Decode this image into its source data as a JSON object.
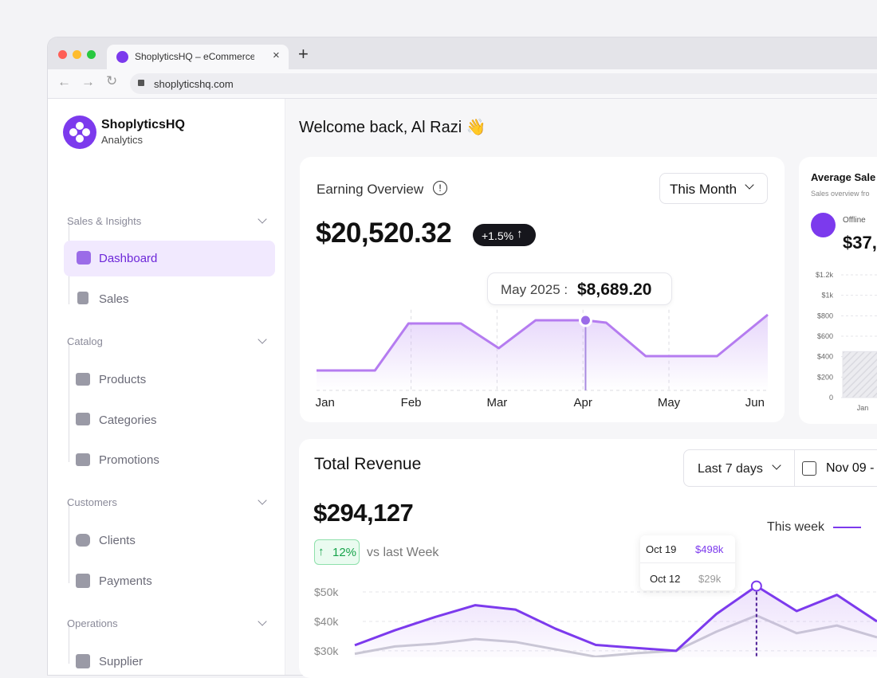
{
  "browser": {
    "tab_title": "ShoplyticsHQ – eCommerce Ana",
    "url": "shoplyticshq.com"
  },
  "sidebar": {
    "brand": "ShoplyticsHQ",
    "brand_subtitle": "Analytics",
    "sections": [
      {
        "title": "Sales & Insights",
        "items": [
          "Dashboard",
          "Sales"
        ]
      },
      {
        "title": "Catalog",
        "items": [
          "Products",
          "Categories",
          "Promotions"
        ]
      },
      {
        "title": "Customers",
        "items": [
          "Clients",
          "Payments"
        ]
      },
      {
        "title": "Operations",
        "items": [
          "Supplier"
        ]
      }
    ]
  },
  "header": {
    "greeting": "Welcome back, Al Razi 👋"
  },
  "earning_overview": {
    "title": "Earning Overview",
    "period": "This Month",
    "amount": "$20,520.32",
    "change": "+1.5%",
    "tooltip": {
      "label": "May 2025 :",
      "value": "$8,689.20"
    },
    "chart_data": {
      "type": "line",
      "color": "#b57cf0",
      "x": [
        -0.1,
        0.58,
        0.97,
        1.58,
        2.02,
        2.45,
        3.03,
        3.27,
        3.73,
        4.56,
        5.15
      ],
      "values": [
        2470,
        2470,
        8290,
        8290,
        5230,
        8690,
        8689.2,
        8390,
        4245,
        4245,
        9380
      ],
      "xlim": [
        -0.1,
        5.15
      ],
      "ylim": [
        0,
        10000
      ],
      "xticks": [
        {
          "value": 0,
          "label": "Jan"
        },
        {
          "value": 1,
          "label": "Feb"
        },
        {
          "value": 2,
          "label": "Mar"
        },
        {
          "value": 3,
          "label": "Apr"
        },
        {
          "value": 4,
          "label": "May"
        },
        {
          "value": 5,
          "label": "Jun"
        }
      ],
      "grid": true,
      "highlight_index": 6
    }
  },
  "average_sales": {
    "title": "Average Sale",
    "subtitle": "Sales overview fro",
    "channel": "Offline",
    "amount": "$37,",
    "chart_data": {
      "type": "bar",
      "categories": [
        "Jan"
      ],
      "values": [
        450
      ],
      "color": "#e4e4ea",
      "ylim": [
        0,
        1200
      ],
      "yticks": [
        0,
        {
          "value": 200,
          "label": "$200"
        },
        {
          "value": 400,
          "label": "$400"
        },
        {
          "value": 600,
          "label": "$600"
        },
        {
          "value": 800,
          "label": "$800"
        },
        {
          "value": 1000,
          "label": "$1k"
        },
        {
          "value": 1200,
          "label": "$1.2k"
        }
      ],
      "grid": true
    }
  },
  "total_revenue": {
    "title": "Total Revenue",
    "range": "Last 7 days",
    "date": "Nov 09 -",
    "amount": "$294,127",
    "change": "12%",
    "comparison": "vs last Week",
    "tooltip": {
      "rows": [
        {
          "label": "Oct 19",
          "value": "$498k"
        },
        {
          "label": "Oct 12",
          "value": "$29k"
        }
      ]
    },
    "chart_data": {
      "type": "line",
      "series": [
        {
          "name": "This week",
          "color": "#7c3aed",
          "values": [
            31900,
            37000,
            41500,
            45500,
            44000,
            37500,
            32000,
            31000,
            30000,
            42500,
            52000,
            43500,
            49000,
            40000
          ]
        },
        {
          "color": "#c9c9d2",
          "values": [
            29000,
            31500,
            32400,
            34000,
            33000,
            30500,
            28000,
            29200,
            30000,
            36500,
            42000,
            36000,
            38600,
            34600
          ]
        }
      ],
      "ylim": [
        27000,
        53000
      ],
      "yticks": [
        {
          "value": 30000,
          "label": "$30k"
        },
        {
          "value": 40000,
          "label": "$40k"
        },
        {
          "value": 50000,
          "label": "$50k"
        }
      ],
      "grid": true,
      "highlight_index": 10
    }
  }
}
